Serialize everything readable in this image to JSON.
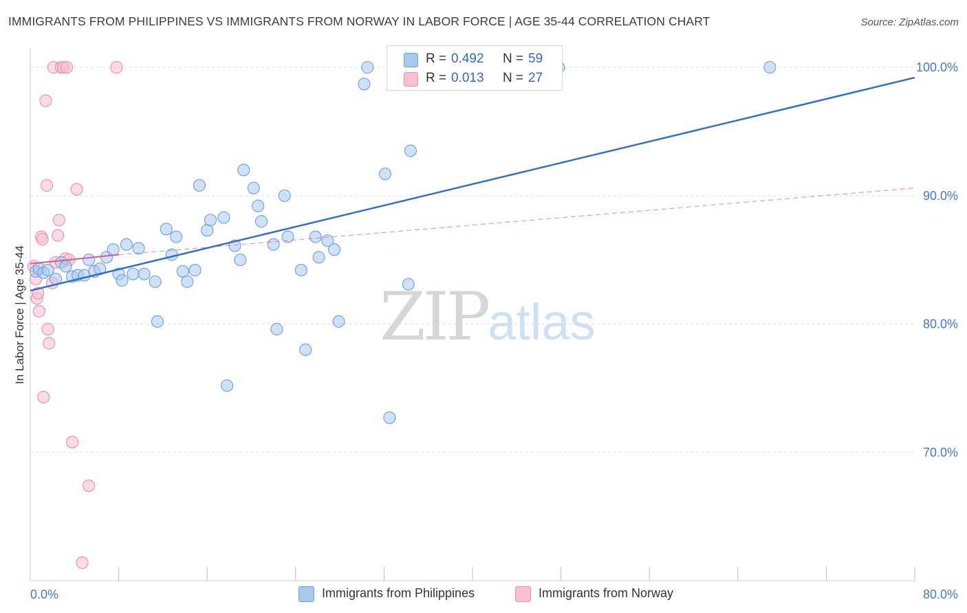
{
  "header": {
    "title": "IMMIGRANTS FROM PHILIPPINES VS IMMIGRANTS FROM NORWAY IN LABOR FORCE | AGE 35-44 CORRELATION CHART",
    "source": "Source: ZipAtlas.com"
  },
  "watermark": {
    "zip": "ZIP",
    "atlas": "atlas"
  },
  "legend": {
    "rows": [
      {
        "r_label": "R = ",
        "r_value": "0.492",
        "n_label": "N = ",
        "n_value": "59"
      },
      {
        "r_label": "R = ",
        "r_value": "0.013",
        "n_label": "N = ",
        "n_value": "27"
      }
    ]
  },
  "bottom_legend": {
    "philippines": "Immigrants from Philippines",
    "norway": "Immigrants from Norway"
  },
  "colors": {
    "philippines_fill": "#a8c8ee",
    "philippines_stroke": "#6a9ee0",
    "philippines_line": "#2f6fcc",
    "norway_fill": "#f8c0d0",
    "norway_stroke": "#ec8aaa",
    "norway_line": "#e0568a",
    "grid": "#dddddd",
    "tick_text": "#4477cc"
  },
  "chart_data": {
    "type": "scatter",
    "title": "IMMIGRANTS FROM PHILIPPINES VS IMMIGRANTS FROM NORWAY IN LABOR FORCE | AGE 35-44 CORRELATION CHART",
    "xlabel": "",
    "ylabel": "In Labor Force | Age 35-44",
    "xlim": [
      0,
      80
    ],
    "ylim": [
      60,
      101.5
    ],
    "x_tick_labels": [
      {
        "value": 0,
        "label": "0.0%"
      },
      {
        "value": 80,
        "label": "80.0%"
      }
    ],
    "y_tick_labels": [
      {
        "value": 70,
        "label": "70.0%"
      },
      {
        "value": 80,
        "label": "80.0%"
      },
      {
        "value": 90,
        "label": "90.0%"
      },
      {
        "value": 100,
        "label": "100.0%"
      }
    ],
    "x_minor_ticks": [
      8,
      16,
      24,
      32,
      40,
      48,
      56,
      64,
      72,
      80
    ],
    "grid": true,
    "legend_position": "top-center",
    "series": [
      {
        "name": "Immigrants from Philippines",
        "key": "philippines",
        "r": 0.492,
        "n": 59,
        "trend": {
          "x0": 0,
          "y0": 82.6,
          "x1": 80,
          "y1": 99.2,
          "style": "solid"
        },
        "points": [
          [
            0.5,
            84.1
          ],
          [
            0.8,
            84.3
          ],
          [
            1.2,
            84.0
          ],
          [
            1.6,
            84.2
          ],
          [
            2.3,
            83.5
          ],
          [
            2.8,
            84.8
          ],
          [
            3.2,
            84.5
          ],
          [
            3.8,
            83.7
          ],
          [
            4.3,
            83.8
          ],
          [
            4.9,
            83.8
          ],
          [
            5.3,
            85.0
          ],
          [
            5.8,
            84.1
          ],
          [
            6.3,
            84.3
          ],
          [
            6.9,
            85.2
          ],
          [
            7.5,
            85.8
          ],
          [
            8.0,
            83.9
          ],
          [
            8.3,
            83.4
          ],
          [
            8.7,
            86.2
          ],
          [
            9.3,
            83.9
          ],
          [
            9.8,
            85.9
          ],
          [
            10.3,
            83.9
          ],
          [
            11.3,
            83.3
          ],
          [
            11.5,
            80.2
          ],
          [
            12.3,
            87.4
          ],
          [
            12.8,
            85.4
          ],
          [
            13.2,
            86.8
          ],
          [
            13.8,
            84.1
          ],
          [
            14.2,
            83.3
          ],
          [
            14.9,
            84.2
          ],
          [
            15.3,
            90.8
          ],
          [
            16.0,
            87.3
          ],
          [
            16.3,
            88.1
          ],
          [
            17.5,
            88.3
          ],
          [
            17.8,
            75.2
          ],
          [
            18.5,
            86.1
          ],
          [
            19.0,
            85.0
          ],
          [
            19.3,
            92.0
          ],
          [
            20.2,
            90.6
          ],
          [
            20.6,
            89.2
          ],
          [
            20.9,
            88.0
          ],
          [
            22.0,
            86.2
          ],
          [
            22.3,
            79.6
          ],
          [
            23.0,
            90.0
          ],
          [
            23.3,
            86.8
          ],
          [
            24.5,
            84.2
          ],
          [
            24.9,
            78.0
          ],
          [
            25.8,
            86.8
          ],
          [
            26.1,
            85.2
          ],
          [
            26.9,
            86.5
          ],
          [
            27.5,
            85.8
          ],
          [
            27.9,
            80.2
          ],
          [
            30.2,
            98.7
          ],
          [
            30.5,
            100.0
          ],
          [
            32.1,
            91.7
          ],
          [
            32.5,
            72.7
          ],
          [
            34.2,
            83.1
          ],
          [
            34.4,
            93.5
          ],
          [
            47.8,
            100.0
          ],
          [
            66.9,
            100.0
          ]
        ]
      },
      {
        "name": "Immigrants from Norway",
        "key": "norway",
        "r": 0.013,
        "n": 27,
        "trend": {
          "x0": 0,
          "y0": 84.7,
          "x1": 8,
          "y1": 85.4,
          "style": "solid"
        },
        "trend_extended": {
          "x0": 8,
          "y0": 85.4,
          "x1": 80,
          "y1": 90.6,
          "style": "dashed"
        },
        "points": [
          [
            0.3,
            84.5
          ],
          [
            0.5,
            83.5
          ],
          [
            0.6,
            82.0
          ],
          [
            0.7,
            82.4
          ],
          [
            0.8,
            81.0
          ],
          [
            1.0,
            86.8
          ],
          [
            1.1,
            86.6
          ],
          [
            1.2,
            74.3
          ],
          [
            1.4,
            97.4
          ],
          [
            1.5,
            90.8
          ],
          [
            1.6,
            79.6
          ],
          [
            1.7,
            78.5
          ],
          [
            2.0,
            83.2
          ],
          [
            2.1,
            100.0
          ],
          [
            2.3,
            84.8
          ],
          [
            2.5,
            86.9
          ],
          [
            2.6,
            88.1
          ],
          [
            2.8,
            100.0
          ],
          [
            3.0,
            100.0
          ],
          [
            3.2,
            85.1
          ],
          [
            3.3,
            100.0
          ],
          [
            3.5,
            85.0
          ],
          [
            3.8,
            70.8
          ],
          [
            4.2,
            90.5
          ],
          [
            4.7,
            61.4
          ],
          [
            5.3,
            67.4
          ],
          [
            7.8,
            100.0
          ]
        ]
      }
    ]
  }
}
